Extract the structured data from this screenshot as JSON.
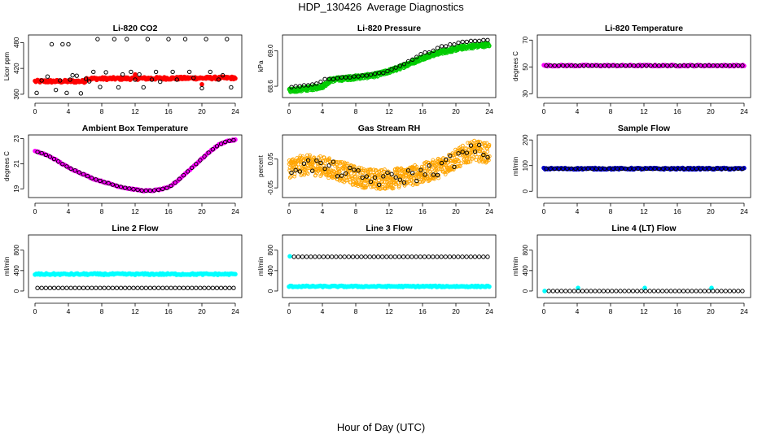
{
  "page": {
    "title": "HDP_130426  Average Diagnostics",
    "xlabel": "Hour of Day (UTC)"
  },
  "colors": {
    "cyan": "#00ffff",
    "black": "#000000",
    "red": "#ff0000",
    "green": "#00cc00",
    "orange": "#ffa500",
    "magenta": "#ff00ff",
    "blue": "#0000cc"
  },
  "chart_data": [
    {
      "type": "scatter",
      "title": "Li-820 CO2",
      "ylabel": "Licor ppm",
      "xlim": [
        0,
        24
      ],
      "ylim": [
        358,
        492
      ],
      "x_ticks": [
        "0",
        "4",
        "8",
        "12",
        "16",
        "20",
        "24"
      ],
      "y_ticks": [
        "360",
        "420",
        "480"
      ],
      "series": [
        {
          "color": "#ff0000",
          "style": "dense_steps",
          "x": [
            0,
            6,
            6.1,
            24
          ],
          "y": [
            390,
            390,
            396,
            398
          ],
          "step": 0.1,
          "spread": 3
        },
        {
          "color": "#ff0000",
          "style": "points",
          "x": [
            12,
            20
          ],
          "y": [
            406,
            383
          ]
        },
        {
          "color": "#000000",
          "style": "points",
          "x": [
            0.2,
            0.8,
            1.5,
            2,
            2.5,
            3,
            3.3,
            3.8,
            4,
            4.2,
            4.5,
            5,
            5.5,
            6.1,
            6.5,
            7,
            7.5,
            7.8,
            8.5,
            9.5,
            10,
            10.5,
            11,
            11.5,
            12,
            12.5,
            13,
            13.5,
            14,
            14.5,
            15,
            16,
            16.5,
            17,
            18,
            18.5,
            19,
            20,
            20.5,
            21,
            22,
            22.5,
            23,
            23.5
          ],
          "y": [
            363,
            392,
            401,
            476,
            370,
            392,
            476,
            363,
            476,
            394,
            404,
            403,
            362,
            396,
            390,
            412,
            488,
            377,
            411,
            488,
            376,
            406,
            488,
            412,
            394,
            406,
            376,
            488,
            394,
            412,
            389,
            488,
            412,
            394,
            488,
            412,
            398,
            374,
            488,
            412,
            394,
            404,
            488,
            376
          ]
        }
      ]
    },
    {
      "type": "scatter",
      "title": "Li-820 Pressure",
      "ylabel": "kPa",
      "xlim": [
        0,
        24
      ],
      "ylim": [
        68.5,
        69.15
      ],
      "x_ticks": [
        "0",
        "4",
        "8",
        "12",
        "16",
        "20",
        "24"
      ],
      "y_ticks": [
        "68.6",
        "69.0"
      ],
      "series": [
        {
          "color": "#00cc00",
          "style": "dense_band",
          "x": [
            0,
            1,
            2,
            3,
            4,
            5,
            6,
            7,
            8,
            9,
            10,
            11,
            12,
            13,
            14,
            15,
            16,
            17,
            18,
            19,
            20,
            21,
            22,
            23,
            24
          ],
          "y": [
            68.55,
            68.56,
            68.57,
            68.58,
            68.6,
            68.67,
            68.68,
            68.69,
            68.7,
            68.71,
            68.72,
            68.74,
            68.77,
            68.8,
            68.84,
            68.88,
            68.92,
            68.95,
            68.98,
            69.0,
            69.02,
            69.04,
            69.05,
            69.06,
            69.07
          ],
          "spread": 0.025
        },
        {
          "color": "#000000",
          "style": "points",
          "x": [
            0.3,
            0.8,
            1.3,
            1.8,
            2.3,
            2.8,
            3.3,
            3.8,
            4.3,
            4.8,
            5.3,
            5.8,
            6.3,
            6.8,
            7.3,
            7.8,
            8.3,
            8.8,
            9.3,
            9.8,
            10.3,
            10.8,
            11.3,
            11.8,
            12.3,
            12.8,
            13.3,
            13.8,
            14.3,
            14.8,
            15.3,
            15.8,
            16.3,
            16.8,
            17.3,
            17.8,
            18.3,
            18.8,
            19.3,
            19.8,
            20.3,
            20.8,
            21.3,
            21.8,
            22.3,
            22.8,
            23.3,
            23.8
          ],
          "y": [
            68.59,
            68.6,
            68.6,
            68.61,
            68.61,
            68.62,
            68.63,
            68.65,
            68.68,
            68.68,
            68.68,
            68.69,
            68.7,
            68.7,
            68.7,
            68.71,
            68.71,
            68.72,
            68.72,
            68.73,
            68.74,
            68.75,
            68.75,
            68.77,
            68.79,
            68.81,
            68.83,
            68.85,
            68.88,
            68.9,
            68.93,
            68.96,
            68.98,
            68.98,
            69.0,
            69.03,
            69.05,
            69.05,
            69.07,
            69.07,
            69.09,
            69.1,
            69.1,
            69.11,
            69.11,
            69.11,
            69.12,
            69.12
          ]
        }
      ]
    },
    {
      "type": "scatter",
      "title": "Li-820 Temperature",
      "ylabel": "degrees C",
      "xlim": [
        0,
        24
      ],
      "ylim": [
        29,
        72
      ],
      "x_ticks": [
        "0",
        "4",
        "8",
        "12",
        "16",
        "20",
        "24"
      ],
      "y_ticks": [
        "30",
        "50",
        "70"
      ],
      "series": [
        {
          "color": "#ff00ff",
          "style": "dense_line",
          "x": [
            0,
            24
          ],
          "y": [
            51,
            51
          ],
          "step": 0.15,
          "spread": 0.5
        },
        {
          "color": "#000000",
          "style": "points_even",
          "x0": 0.3,
          "x1": 23.8,
          "n": 48,
          "y": 51
        }
      ]
    },
    {
      "type": "scatter",
      "title": "Ambient Box Temperature",
      "ylabel": "degrees C",
      "xlim": [
        0,
        24
      ],
      "ylim": [
        18.5,
        23.1
      ],
      "x_ticks": [
        "0",
        "4",
        "8",
        "12",
        "16",
        "20",
        "24"
      ],
      "y_ticks": [
        "19",
        "21",
        "23"
      ],
      "series": [
        {
          "color": "#ff00ff",
          "style": "dense_line",
          "x": [
            0,
            1,
            2,
            3,
            4,
            5,
            6,
            7,
            8,
            9,
            10,
            11,
            12,
            13,
            14,
            15,
            16,
            17,
            18,
            19,
            20,
            21,
            22,
            23,
            24
          ],
          "y": [
            22.0,
            21.8,
            21.5,
            21.1,
            20.7,
            20.4,
            20.1,
            19.8,
            19.6,
            19.4,
            19.2,
            19.05,
            18.95,
            18.85,
            18.85,
            18.95,
            19.1,
            19.6,
            20.2,
            20.8,
            21.4,
            22.0,
            22.5,
            22.8,
            22.9
          ],
          "step": 0.15,
          "spread": 0.04
        },
        {
          "color": "#000000",
          "style": "points_curve",
          "x0": 0.3,
          "x1": 23.8,
          "n": 48
        }
      ]
    },
    {
      "type": "scatter",
      "title": "Gas Stream RH",
      "ylabel": "percent",
      "xlim": [
        0,
        24
      ],
      "ylim": [
        -0.075,
        0.125
      ],
      "x_ticks": [
        "0",
        "4",
        "8",
        "12",
        "16",
        "20",
        "24"
      ],
      "y_ticks": [
        "-0.05",
        "0.05"
      ],
      "series": [
        {
          "color": "#ffa500",
          "style": "dense_band",
          "x": [
            0,
            2,
            4,
            6,
            8,
            10,
            12,
            14,
            16,
            18,
            20,
            22,
            24
          ],
          "y": [
            0.02,
            0.03,
            0.025,
            0.01,
            -0.01,
            -0.02,
            -0.02,
            -0.01,
            0.0,
            0.02,
            0.05,
            0.08,
            0.07
          ],
          "spread": 0.035
        },
        {
          "color": "#000000",
          "style": "points_noise",
          "x": [
            0,
            2,
            4,
            6,
            8,
            10,
            12,
            14,
            16,
            18,
            20,
            22,
            24
          ],
          "y": [
            0.02,
            0.03,
            0.025,
            0.01,
            -0.01,
            -0.02,
            -0.02,
            -0.01,
            0.0,
            0.02,
            0.05,
            0.08,
            0.07
          ],
          "x0": 0.3,
          "x1": 23.8,
          "n": 48,
          "spread": 0.025
        }
      ]
    },
    {
      "type": "scatter",
      "title": "Sample Flow",
      "ylabel": "ml/min",
      "xlim": [
        0,
        24
      ],
      "ylim": [
        -15,
        210
      ],
      "x_ticks": [
        "0",
        "4",
        "8",
        "12",
        "16",
        "20",
        "24"
      ],
      "y_ticks": [
        "0",
        "100",
        "200"
      ],
      "series": [
        {
          "color": "#0000cc",
          "style": "dense_line",
          "x": [
            0,
            24
          ],
          "y": [
            88,
            88
          ],
          "step": 0.15,
          "spread": 3
        },
        {
          "color": "#000000",
          "style": "points_even",
          "x0": 0.3,
          "x1": 23.8,
          "n": 48,
          "y": 88
        }
      ]
    },
    {
      "type": "scatter",
      "title": "Line 2 Flow",
      "ylabel": "ml/min",
      "xlim": [
        0,
        24
      ],
      "ylim": [
        -80,
        1050
      ],
      "x_ticks": [
        "0",
        "4",
        "8",
        "12",
        "16",
        "20",
        "24"
      ],
      "y_ticks": [
        "0",
        "400",
        "800"
      ],
      "series": [
        {
          "color": "#00ffff",
          "style": "dense_line",
          "x": [
            0,
            24
          ],
          "y": [
            330,
            330
          ],
          "step": 0.15,
          "spread": 15
        },
        {
          "color": "#000000",
          "style": "points_even",
          "x0": 0.3,
          "x1": 23.8,
          "n": 48,
          "y": 60
        }
      ]
    },
    {
      "type": "scatter",
      "title": "Line 3 Flow",
      "ylabel": "ml/min",
      "xlim": [
        0,
        24
      ],
      "ylim": [
        -80,
        1050
      ],
      "x_ticks": [
        "0",
        "4",
        "8",
        "12",
        "16",
        "20",
        "24"
      ],
      "y_ticks": [
        "0",
        "400",
        "800"
      ],
      "series": [
        {
          "color": "#00ffff",
          "style": "dense_line",
          "x": [
            0,
            24
          ],
          "y": [
            90,
            90
          ],
          "step": 0.15,
          "spread": 12
        },
        {
          "color": "#00ffff",
          "style": "points",
          "x": [
            0.1
          ],
          "y": [
            680
          ]
        },
        {
          "color": "#000000",
          "style": "points_even",
          "x0": 0.6,
          "x1": 23.8,
          "n": 47,
          "y": 670
        }
      ]
    },
    {
      "type": "scatter",
      "title": "Line 4 (LT) Flow",
      "ylabel": "ml/min",
      "xlim": [
        0,
        24
      ],
      "ylim": [
        -80,
        1050
      ],
      "x_ticks": [
        "0",
        "4",
        "8",
        "12",
        "16",
        "20",
        "24"
      ],
      "y_ticks": [
        "0",
        "400",
        "800"
      ],
      "series": [
        {
          "color": "#00ffff",
          "style": "points",
          "x": [
            0.1,
            4.1,
            12.1,
            20.1
          ],
          "y": [
            0,
            60,
            60,
            60
          ]
        },
        {
          "color": "#000000",
          "style": "points_even",
          "x0": 0.6,
          "x1": 23.8,
          "n": 47,
          "y": 0
        }
      ]
    }
  ]
}
